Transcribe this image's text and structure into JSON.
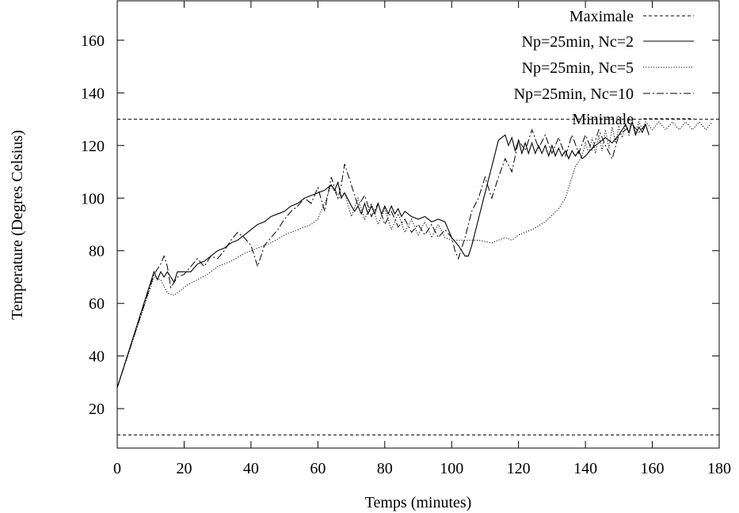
{
  "chart_data": {
    "type": "line",
    "title": "",
    "xlabel": "Temps (minutes)",
    "ylabel": "Temperature (Degres Celsius)",
    "xlim": [
      0,
      180
    ],
    "ylim": [
      5,
      175
    ],
    "xticks": [
      0,
      20,
      40,
      60,
      80,
      100,
      120,
      140,
      160,
      180
    ],
    "yticks": [
      20,
      40,
      60,
      80,
      100,
      120,
      140,
      160
    ],
    "grid": false,
    "legend": "top-right",
    "series": [
      {
        "name": "Maximale",
        "style": "dashed",
        "x": [
          0,
          180
        ],
        "y": [
          130,
          130
        ]
      },
      {
        "name": "Np=25min, Nc=2",
        "style": "solid",
        "x": [
          0,
          11,
          12,
          13,
          14,
          15,
          16,
          17,
          18,
          20,
          22,
          24,
          26,
          28,
          30,
          32,
          34,
          36,
          38,
          40,
          42,
          44,
          46,
          48,
          50,
          52,
          54,
          56,
          58,
          60,
          62,
          64,
          65,
          66,
          67,
          68,
          70,
          71,
          72,
          73,
          74,
          75,
          76,
          77,
          78,
          79,
          80,
          81,
          82,
          83,
          84,
          85,
          86,
          88,
          90,
          92,
          94,
          96,
          98,
          100,
          102,
          104,
          105,
          106,
          108,
          110,
          112,
          114,
          116,
          117,
          118,
          119,
          120,
          121,
          122,
          123,
          124,
          125,
          126,
          127,
          128,
          129,
          130,
          131,
          132,
          133,
          134,
          135,
          136,
          137,
          138,
          139,
          140,
          142,
          144,
          146,
          148,
          150,
          152,
          153,
          154,
          155,
          156,
          157,
          158,
          159
        ],
        "y": [
          28,
          72,
          69,
          72,
          70,
          72,
          70,
          68,
          72,
          72,
          72,
          75,
          76,
          78,
          80,
          81,
          83,
          84,
          86,
          88,
          90,
          91,
          93,
          94,
          95,
          97,
          98,
          100,
          101,
          102,
          103,
          105,
          103,
          106,
          100,
          102,
          97,
          95,
          97,
          94,
          98,
          94,
          97,
          94,
          98,
          94,
          97,
          94,
          97,
          94,
          96,
          93,
          95,
          93,
          92,
          93,
          91,
          92,
          91,
          85,
          82,
          78,
          78,
          82,
          92,
          102,
          112,
          122,
          124,
          120,
          123,
          118,
          122,
          117,
          121,
          117,
          121,
          117,
          120,
          117,
          120,
          116,
          120,
          116,
          119,
          116,
          118,
          115,
          118,
          116,
          118,
          115,
          116,
          119,
          121,
          123,
          121,
          124,
          128,
          125,
          129,
          124,
          127,
          125,
          128,
          124
        ]
      },
      {
        "name": "Np=25min, Nc=5",
        "style": "dotted",
        "x": [
          0,
          11,
          13,
          15,
          17,
          19,
          21,
          24,
          27,
          30,
          34,
          38,
          42,
          46,
          50,
          54,
          58,
          60,
          62,
          64,
          66,
          68,
          70,
          72,
          74,
          76,
          78,
          80,
          82,
          84,
          86,
          88,
          90,
          92,
          94,
          96,
          98,
          100,
          104,
          108,
          112,
          114,
          116,
          118,
          120,
          124,
          128,
          132,
          134,
          136,
          137,
          139,
          140,
          141,
          142,
          143,
          144,
          145,
          146,
          147,
          148,
          149,
          150,
          151,
          152,
          153,
          154,
          155,
          156,
          157,
          158,
          160,
          162,
          164,
          166,
          168,
          170,
          172,
          174,
          176,
          178
        ],
        "y": [
          28,
          70,
          69,
          64,
          63,
          65,
          67,
          69,
          71,
          74,
          76,
          79,
          81,
          83,
          86,
          88,
          90,
          92,
          98,
          105,
          100,
          102,
          93,
          100,
          92,
          98,
          90,
          96,
          88,
          94,
          87,
          92,
          86,
          91,
          85,
          90,
          85,
          84,
          84,
          84,
          83,
          84,
          85,
          84,
          86,
          88,
          91,
          96,
          100,
          108,
          112,
          116,
          121,
          117,
          123,
          117,
          124,
          118,
          126,
          119,
          127,
          121,
          127,
          123,
          128,
          124,
          129,
          125,
          129,
          126,
          129,
          126,
          129,
          126,
          129,
          126,
          129,
          126,
          129,
          126,
          129
        ]
      },
      {
        "name": "Np=25min, Nc=10",
        "style": "dashdot",
        "x": [
          0,
          11,
          13,
          14,
          15,
          16,
          17,
          18,
          20,
          22,
          24,
          26,
          28,
          30,
          32,
          34,
          36,
          38,
          40,
          42,
          44,
          46,
          48,
          50,
          52,
          54,
          56,
          58,
          60,
          62,
          64,
          66,
          67,
          68,
          70,
          72,
          74,
          76,
          78,
          80,
          82,
          84,
          86,
          88,
          90,
          92,
          94,
          96,
          98,
          100,
          101,
          102,
          104,
          106,
          108,
          110,
          112,
          114,
          116,
          118,
          120,
          122,
          124,
          126,
          128,
          130,
          132,
          134,
          136,
          138,
          140,
          142,
          144,
          146,
          148,
          150,
          152,
          154,
          156,
          158
        ],
        "y": [
          28,
          71,
          75,
          78,
          74,
          66,
          68,
          70,
          71,
          74,
          77,
          74,
          78,
          77,
          80,
          84,
          87,
          85,
          82,
          74,
          82,
          85,
          88,
          92,
          95,
          97,
          100,
          98,
          104,
          95,
          108,
          100,
          105,
          113,
          105,
          97,
          101,
          93,
          98,
          90,
          95,
          89,
          92,
          87,
          90,
          86,
          90,
          85,
          88,
          85,
          80,
          77,
          85,
          95,
          100,
          108,
          100,
          108,
          115,
          110,
          122,
          118,
          126,
          119,
          124,
          117,
          123,
          116,
          124,
          117,
          124,
          118,
          126,
          120,
          115,
          124,
          126,
          128,
          125,
          128
        ]
      },
      {
        "name": "Minimale",
        "style": "dashed",
        "x": [
          0,
          180
        ],
        "y": [
          10,
          10
        ]
      }
    ]
  }
}
